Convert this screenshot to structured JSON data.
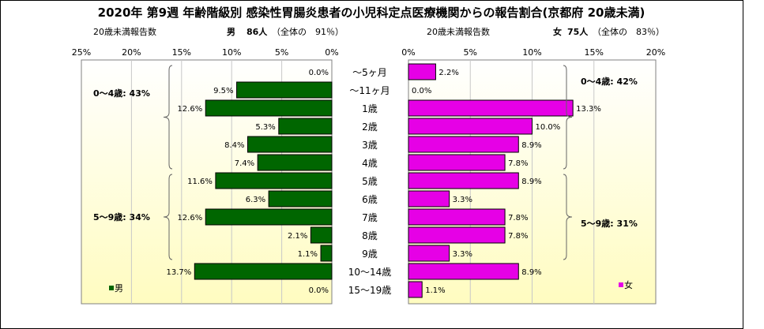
{
  "title": "2020年 第9週 年齢階級別 感染性胃腸炎患者の小児科定点医療機関からの報告割合(京都府 20歳未満)",
  "male_header": {
    "count_label": "20歳未満報告数",
    "gender": "男",
    "count": "86人",
    "share_note": "（全体の　91％）"
  },
  "female_header": {
    "count_label": "20歳未満報告数",
    "gender": "女",
    "count": "75人",
    "share_note": "（全体の　83％）"
  },
  "colors": {
    "male_bar": "#006600",
    "female_bar": "#e600e6",
    "plot_top": "#ffffff",
    "plot_bottom": "#fffcc0",
    "gridline": "#c8c8c8",
    "bracket": "#666666"
  },
  "chart_data": [
    {
      "type": "bar",
      "orientation": "horizontal",
      "direction": "right-to-left",
      "series_name": "男",
      "categories": [
        "～5ヶ月",
        "～11ヶ月",
        "1歳",
        "2歳",
        "3歳",
        "4歳",
        "5歳",
        "6歳",
        "7歳",
        "8歳",
        "9歳",
        "10～14歳",
        "15～19歳"
      ],
      "values": [
        0.0,
        9.5,
        12.6,
        5.3,
        8.4,
        7.4,
        11.6,
        6.3,
        12.6,
        2.1,
        1.1,
        13.7,
        0.0
      ],
      "value_labels": [
        "0.0%",
        "9.5%",
        "12.6%",
        "5.3%",
        "8.4%",
        "7.4%",
        "11.6%",
        "6.3%",
        "12.6%",
        "2.1%",
        "1.1%",
        "13.7%",
        "0.0%"
      ],
      "xlim": [
        0,
        25
      ],
      "xticks": [
        "25%",
        "20%",
        "15%",
        "10%",
        "5%",
        "0%"
      ],
      "grid": true,
      "legend": {
        "label": "男",
        "position": "bottom-left"
      },
      "groups": [
        {
          "label": "0～4歳: 43%",
          "from": 0,
          "to": 5
        },
        {
          "label": "5～9歳: 34%",
          "from": 6,
          "to": 10
        }
      ]
    },
    {
      "type": "bar",
      "orientation": "horizontal",
      "direction": "left-to-right",
      "series_name": "女",
      "categories": [
        "～5ヶ月",
        "～11ヶ月",
        "1歳",
        "2歳",
        "3歳",
        "4歳",
        "5歳",
        "6歳",
        "7歳",
        "8歳",
        "9歳",
        "10～14歳",
        "15～19歳"
      ],
      "values": [
        2.2,
        0.0,
        13.3,
        10.0,
        8.9,
        7.8,
        8.9,
        3.3,
        7.8,
        7.8,
        3.3,
        8.9,
        1.1
      ],
      "value_labels": [
        "2.2%",
        "0.0%",
        "13.3%",
        "10.0%",
        "8.9%",
        "7.8%",
        "8.9%",
        "3.3%",
        "7.8%",
        "7.8%",
        "3.3%",
        "8.9%",
        "1.1%"
      ],
      "xlim": [
        0,
        20
      ],
      "xticks": [
        "0%",
        "5%",
        "10%",
        "15%",
        "20%"
      ],
      "grid": true,
      "legend": {
        "label": "女",
        "position": "bottom-right"
      },
      "groups": [
        {
          "label": "0～4歳: 42%",
          "from": 0,
          "to": 5
        },
        {
          "label": "5～9歳: 31%",
          "from": 6,
          "to": 10
        }
      ]
    }
  ]
}
